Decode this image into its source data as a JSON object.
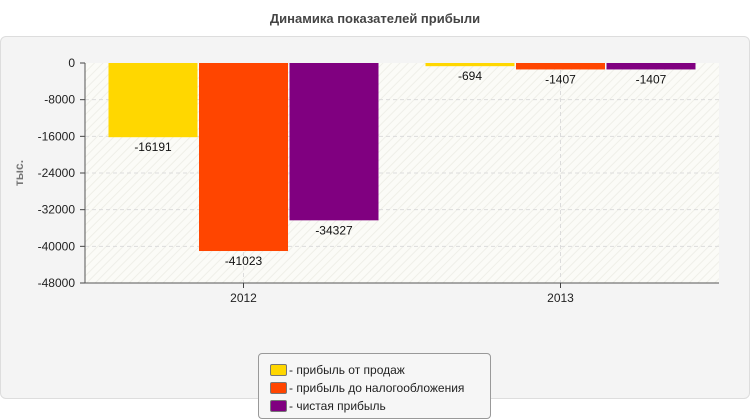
{
  "chart_data": {
    "type": "bar",
    "title": "Динамика показателей прибыли",
    "ylabel": "тыс.",
    "xlabel": "",
    "categories": [
      "2012",
      "2013"
    ],
    "ylim": [
      -48000,
      0
    ],
    "yticks": [
      0,
      -8000,
      -16000,
      -24000,
      -32000,
      -40000,
      -48000
    ],
    "grid": true,
    "legend_position": "bottom",
    "series": [
      {
        "name": "- прибыль от продаж",
        "color": "#FFD700",
        "values": [
          -16191,
          -694
        ]
      },
      {
        "name": "- прибыль до налогообложения",
        "color": "#FF4500",
        "values": [
          -41023,
          -1407
        ]
      },
      {
        "name": "- чистая прибыль",
        "color": "#800080",
        "values": [
          -34327,
          -1407
        ]
      }
    ]
  }
}
